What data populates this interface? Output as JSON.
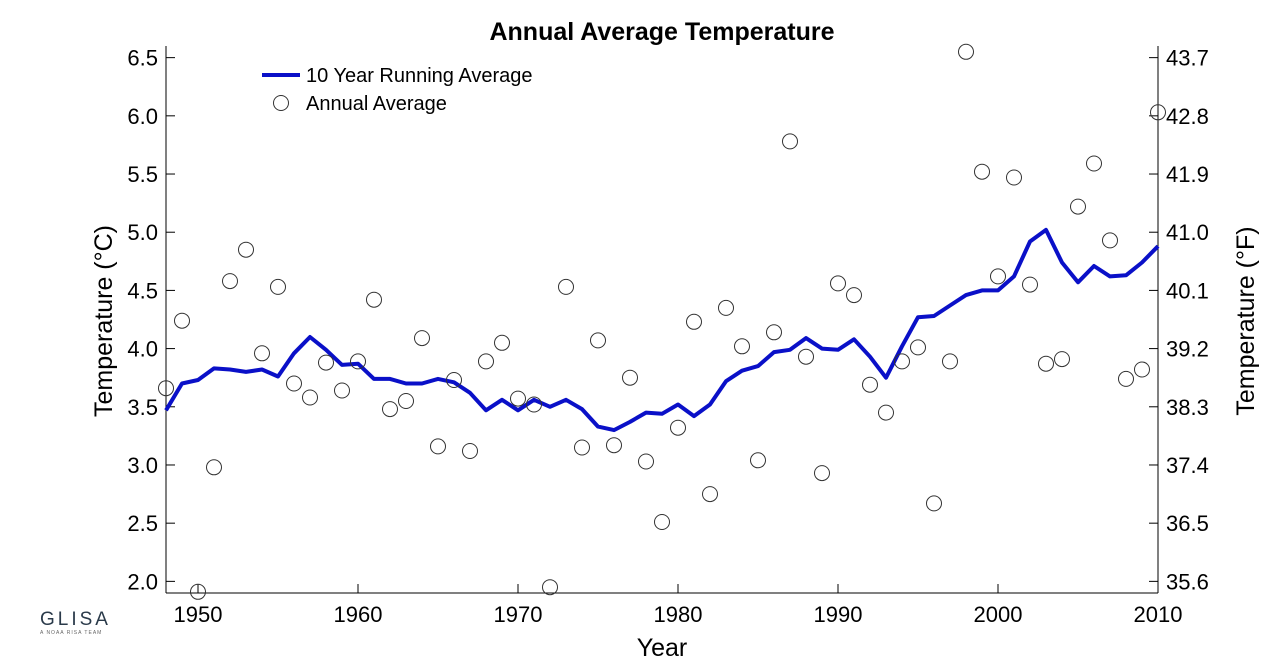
{
  "logo": {
    "name": "GLISA",
    "tagline": "A NOAA RISA TEAM"
  },
  "colors": {
    "running_average": "#0a10c8",
    "annual_marker": "#333333"
  },
  "chart_data": {
    "type": "line",
    "title": "Annual Average Temperature",
    "xlabel": "Year",
    "ylabel": "Temperature (°C)",
    "ylabel_right": "Temperature (°F)",
    "xlim": [
      1948,
      2010
    ],
    "ylim": [
      1.9,
      6.6
    ],
    "x_ticks": [
      "1950",
      "1960",
      "1970",
      "1980",
      "1990",
      "2000",
      "2010"
    ],
    "y_ticks": [
      "2.0",
      "2.5",
      "3.0",
      "3.5",
      "4.0",
      "4.5",
      "5.0",
      "5.5",
      "6.0",
      "6.5"
    ],
    "y_ticks_right": [
      "35.6",
      "36.5",
      "37.4",
      "38.3",
      "39.2",
      "40.1",
      "41.0",
      "41.9",
      "42.8",
      "43.7"
    ],
    "legend_position": "top-left",
    "series": [
      {
        "name": "10 Year Running Average",
        "style": "line",
        "x": [
          1948,
          1949,
          1950,
          1951,
          1952,
          1953,
          1954,
          1955,
          1956,
          1957,
          1958,
          1959,
          1960,
          1961,
          1962,
          1963,
          1964,
          1965,
          1966,
          1967,
          1968,
          1969,
          1970,
          1971,
          1972,
          1973,
          1974,
          1975,
          1976,
          1977,
          1978,
          1979,
          1980,
          1981,
          1982,
          1983,
          1984,
          1985,
          1986,
          1987,
          1988,
          1989,
          1990,
          1991,
          1992,
          1993,
          1994,
          1995,
          1996,
          1997,
          1998,
          1999,
          2000,
          2001,
          2002,
          2003,
          2004,
          2005,
          2006,
          2007,
          2008,
          2009,
          2010
        ],
        "y": [
          3.47,
          3.7,
          3.73,
          3.83,
          3.82,
          3.8,
          3.82,
          3.76,
          3.96,
          4.1,
          3.99,
          3.86,
          3.87,
          3.74,
          3.74,
          3.7,
          3.7,
          3.74,
          3.71,
          3.62,
          3.47,
          3.56,
          3.47,
          3.56,
          3.5,
          3.56,
          3.48,
          3.33,
          3.3,
          3.37,
          3.45,
          3.44,
          3.52,
          3.42,
          3.52,
          3.72,
          3.81,
          3.85,
          3.97,
          3.99,
          4.09,
          4.0,
          3.99,
          4.08,
          3.93,
          3.75,
          4.02,
          4.27,
          4.28,
          4.37,
          4.46,
          4.5,
          4.5,
          4.62,
          4.92,
          5.02,
          4.74,
          4.57,
          4.71,
          4.62,
          4.63,
          4.74,
          4.88
        ]
      },
      {
        "name": "Annual Average",
        "style": "scatter",
        "x": [
          1948,
          1949,
          1950,
          1951,
          1952,
          1953,
          1954,
          1955,
          1956,
          1957,
          1958,
          1959,
          1960,
          1961,
          1962,
          1963,
          1964,
          1965,
          1966,
          1967,
          1968,
          1969,
          1970,
          1971,
          1972,
          1973,
          1974,
          1975,
          1976,
          1977,
          1978,
          1979,
          1980,
          1981,
          1982,
          1983,
          1984,
          1985,
          1986,
          1987,
          1988,
          1989,
          1990,
          1991,
          1992,
          1993,
          1994,
          1995,
          1996,
          1997,
          1998,
          1999,
          2000,
          2001,
          2002,
          2003,
          2004,
          2005,
          2006,
          2007,
          2008,
          2009,
          2010
        ],
        "y": [
          3.66,
          4.24,
          1.91,
          2.98,
          4.58,
          4.85,
          3.96,
          4.53,
          3.7,
          3.58,
          3.88,
          3.64,
          3.89,
          4.42,
          3.48,
          3.55,
          4.09,
          3.16,
          3.73,
          3.12,
          3.89,
          4.05,
          3.57,
          3.52,
          1.95,
          4.53,
          3.15,
          4.07,
          3.17,
          3.75,
          3.03,
          2.51,
          3.32,
          4.23,
          2.75,
          4.35,
          4.02,
          3.04,
          4.14,
          5.78,
          3.93,
          2.93,
          4.56,
          4.46,
          3.69,
          3.45,
          3.89,
          4.01,
          2.67,
          3.89,
          6.55,
          5.52,
          4.62,
          5.47,
          4.55,
          3.87,
          3.91,
          5.22,
          5.59,
          4.93,
          3.74,
          3.82,
          6.03
        ]
      }
    ]
  }
}
